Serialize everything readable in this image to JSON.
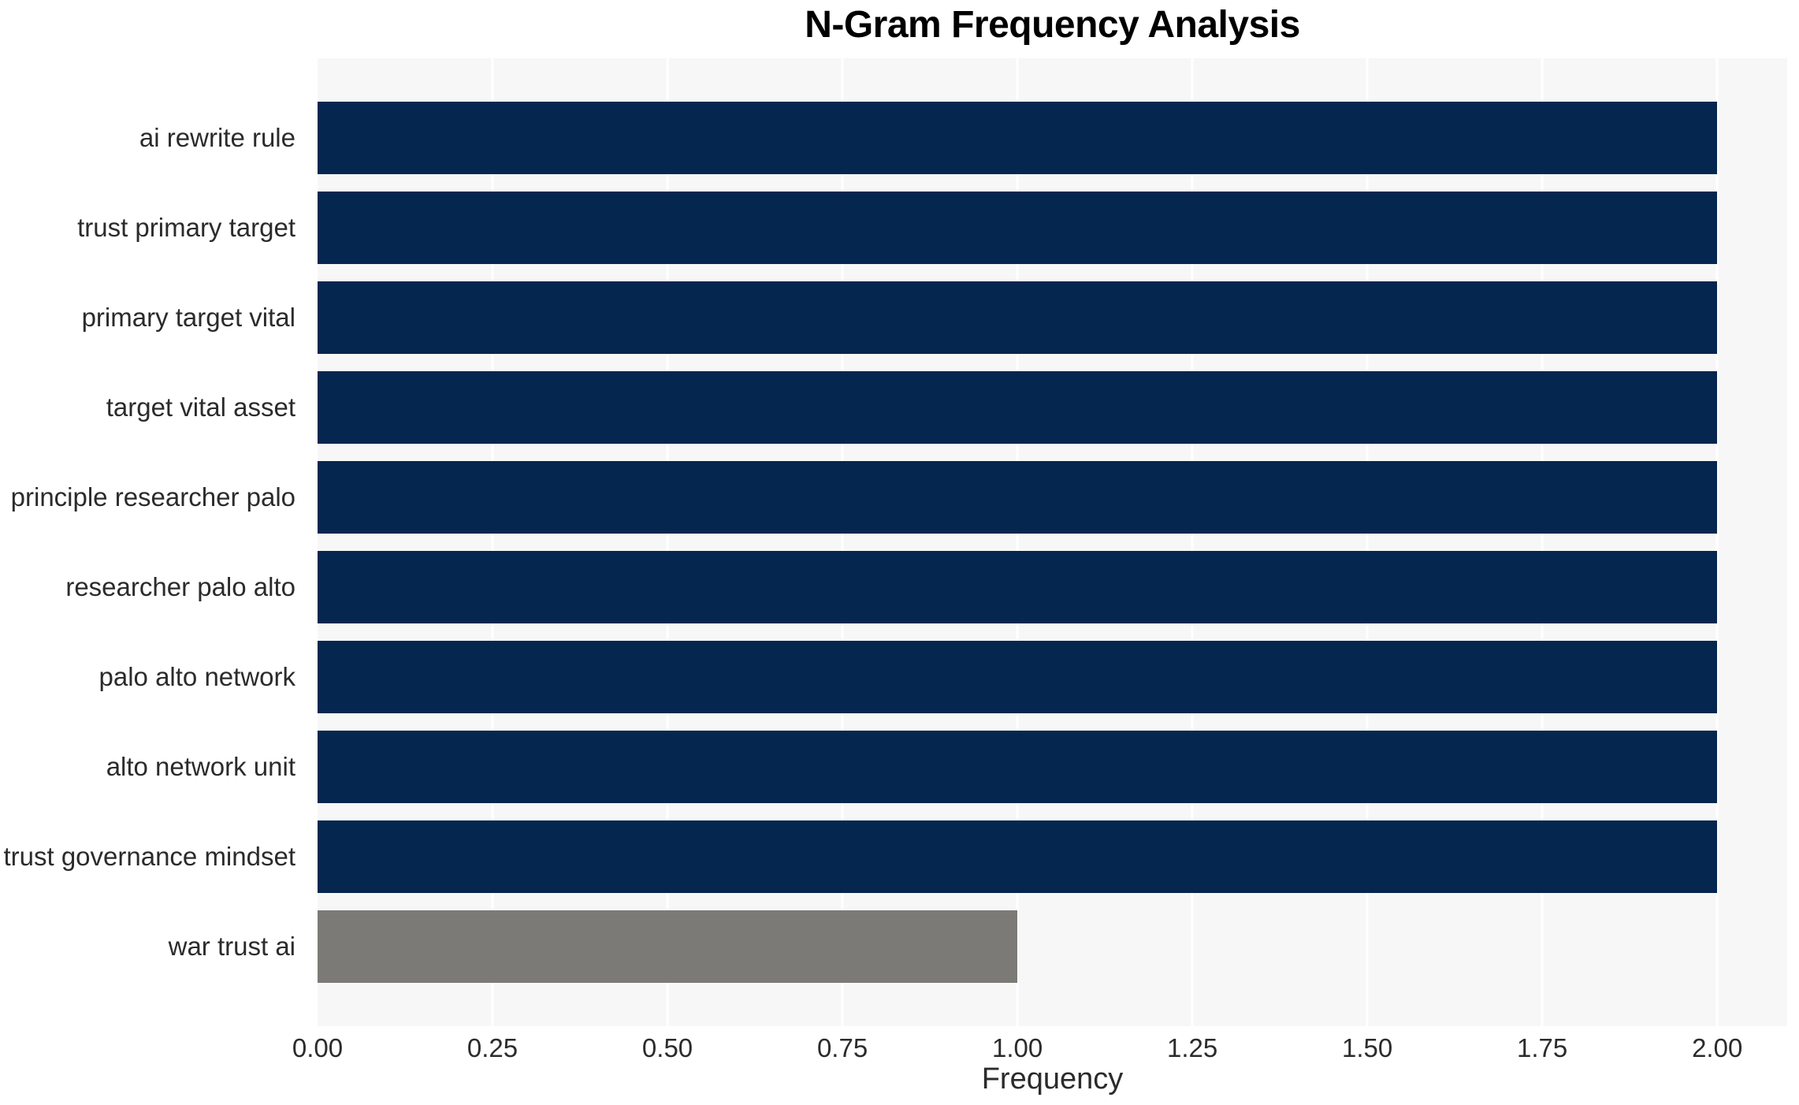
{
  "chart_data": {
    "type": "bar",
    "orientation": "horizontal",
    "title": "N-Gram Frequency Analysis",
    "xlabel": "Frequency",
    "ylabel": "",
    "categories": [
      "ai rewrite rule",
      "trust primary target",
      "primary target vital",
      "target vital asset",
      "principle researcher palo",
      "researcher palo alto",
      "palo alto network",
      "alto network unit",
      "trust governance mindset",
      "war trust ai"
    ],
    "values": [
      2,
      2,
      2,
      2,
      2,
      2,
      2,
      2,
      2,
      1
    ],
    "bar_colors": [
      "#04264f",
      "#04264f",
      "#04264f",
      "#04264f",
      "#04264f",
      "#04264f",
      "#04264f",
      "#04264f",
      "#04264f",
      "#7b7a76"
    ],
    "xlim": [
      0,
      2.1
    ],
    "xticks": [
      0.0,
      0.25,
      0.5,
      0.75,
      1.0,
      1.25,
      1.5,
      1.75,
      2.0
    ],
    "xtick_labels": [
      "0.00",
      "0.25",
      "0.50",
      "0.75",
      "1.00",
      "1.25",
      "1.50",
      "1.75",
      "2.00"
    ],
    "grid": true,
    "legend": "none",
    "colors": {
      "bar_primary": "#04264f",
      "bar_secondary": "#7b7a76",
      "plot_background": "#f7f7f7",
      "gridline": "#ffffff",
      "text": "#2b2b2b",
      "title_text": "#000000",
      "figure_background": "#ffffff"
    }
  }
}
